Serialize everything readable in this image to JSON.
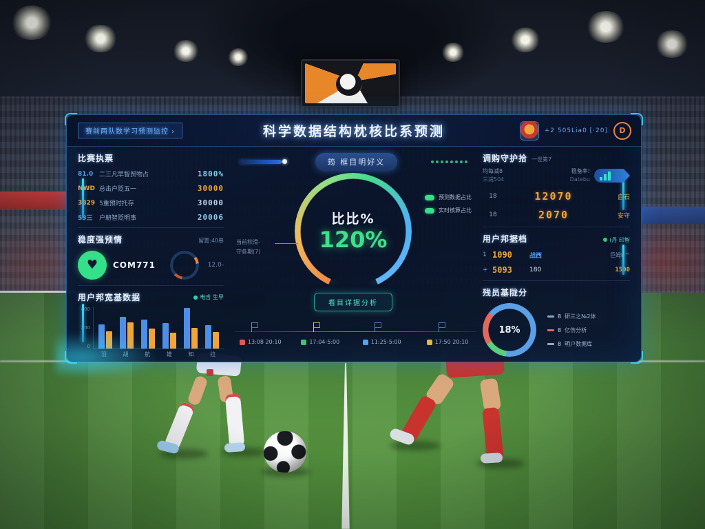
{
  "theme": {
    "accent_cyan": "#37e0ff",
    "accent_teal": "#4de0c8",
    "orange": "#f0a43c",
    "blue": "#4da3ff",
    "green": "#3ec46d",
    "panel_bg": "#0a1930"
  },
  "panel": {
    "header": {
      "tab_label": "赛前两队数学习预测监控 ›",
      "title": "科学数据结构枕核比系预测",
      "session_text": "+2 505Liа0 [·20]",
      "info_label": "D"
    },
    "left": {
      "sec1_title": "比赛执票",
      "stats": [
        {
          "prefix": "81.0",
          "prefix_color": "#5aa0e8",
          "label": "二三凡早智贸物占",
          "value": "1800%",
          "value_color": "#7fd4f0"
        },
        {
          "prefix": "NWD",
          "prefix_color": "#f0a43c",
          "label": "总击户贬五一",
          "value": "30000",
          "value_color": "#f0a43c"
        },
        {
          "prefix": "3829",
          "prefix_color": "#f0a43c",
          "label": "5重预时托存",
          "value": "30000",
          "value_color": "#bcd4ea"
        },
        {
          "prefix": "53三",
          "prefix_color": "#5aa0e8",
          "label": "户册智贬明事",
          "value": "20006",
          "value_color": "#8fc8e8"
        }
      ],
      "sec2_title": "稳度强预情",
      "sec2_note": "留置:40串",
      "badge_label": "COM771",
      "ring_value": "12.0-",
      "sec3_title": "用户邦宽基数据",
      "sec3_legend": "电含 生早"
    },
    "center": {
      "pill_label": "筠 框目明好义",
      "gauge_title": "比比%",
      "gauge_value": "120%",
      "callout1": "当前积滑-",
      "callout2": "守各期(7)",
      "legend": [
        {
          "label": "预测数据占比"
        },
        {
          "label": "实时核算占比"
        }
      ],
      "detail_label": "看目详据分析",
      "timeline": [
        {
          "color": "#e05a52",
          "text": "13:08 20:10"
        },
        {
          "color": "#3ec46d",
          "text": "17:04-5:00"
        },
        {
          "color": "#4da3ff",
          "text": "11:25-5:00"
        },
        {
          "color": "#f0b23a",
          "text": "17:50 20:10"
        }
      ]
    },
    "right": {
      "sec1_title": "调购守护拾",
      "sec1_note": "一世第7",
      "colL1": "均每减8",
      "colL2": "三减504",
      "colR1": "稳备率!",
      "colR2": "Datebu",
      "rows": [
        {
          "num": "18",
          "value": "12070",
          "tag": "自石"
        },
        {
          "num": "18",
          "value": "2070",
          "tag": "安守"
        }
      ],
      "sec2_title": "用户邦据档",
      "sec2_note": "(丹 印智",
      "rows2": [
        {
          "a": "1",
          "b": "1090",
          "c": "战西",
          "d": "巨姆8™"
        },
        {
          "a": "+",
          "b": "5093",
          "c": "180",
          "d": "1500"
        }
      ],
      "sec3_title": "残员基陇分",
      "donut_legend": [
        {
          "num": "8",
          "label": "研三之№2体",
          "color": "#8fa6c4"
        },
        {
          "num": "8",
          "label": "亿伤分析",
          "color": "#e2685e"
        },
        {
          "num": "8",
          "label": "明户数据库",
          "color": "#8fa6c4"
        }
      ]
    }
  },
  "chart_data": [
    {
      "id": "gauge",
      "type": "donut-gauge",
      "title": "比比%",
      "value_label": "120%",
      "start_deg": 205,
      "sweep_deg": 310,
      "stops": [
        {
          "color": "#ee8a4a",
          "pos": 0
        },
        {
          "color": "#f3b85a",
          "pos": 0.18
        },
        {
          "color": "#8ee087",
          "pos": 0.42
        },
        {
          "color": "#46d98e",
          "pos": 0.56
        },
        {
          "color": "#4fb2f5",
          "pos": 0.76
        },
        {
          "color": "#63b5fa",
          "pos": 1
        }
      ]
    },
    {
      "id": "user-bars",
      "type": "bar",
      "title": "用户邦宽基数据",
      "categories": [
        "羽",
        "胡",
        "航",
        "雄",
        "知",
        "拉"
      ],
      "series": [
        {
          "name": "蓝",
          "color": "#4d8fe8",
          "values": [
            230,
            305,
            275,
            240,
            385,
            225
          ]
        },
        {
          "name": "橙",
          "color": "#f0a43c",
          "values": [
            165,
            250,
            190,
            150,
            195,
            160
          ]
        }
      ],
      "ylim": [
        0,
        400
      ],
      "yticks": [
        "400",
        "200",
        "0"
      ]
    },
    {
      "id": "score-donut",
      "type": "donut",
      "center_label": "18%",
      "start_deg": -50,
      "slices": [
        {
          "color": "#5b9fe6",
          "value": 66
        },
        {
          "color": "#57cf7d",
          "value": 14
        },
        {
          "color": "#e2685e",
          "value": 20
        }
      ]
    },
    {
      "id": "mini-ring",
      "type": "donut",
      "center_label": "",
      "start_deg": -90,
      "slices": [
        {
          "color": "#1d3a60",
          "value": 40
        },
        {
          "color": "#e8833c",
          "value": 8
        },
        {
          "color": "#1d3a60",
          "value": 30
        },
        {
          "color": "#c05a28",
          "value": 10
        },
        {
          "color": "#1d3a60",
          "value": 12
        }
      ]
    }
  ]
}
